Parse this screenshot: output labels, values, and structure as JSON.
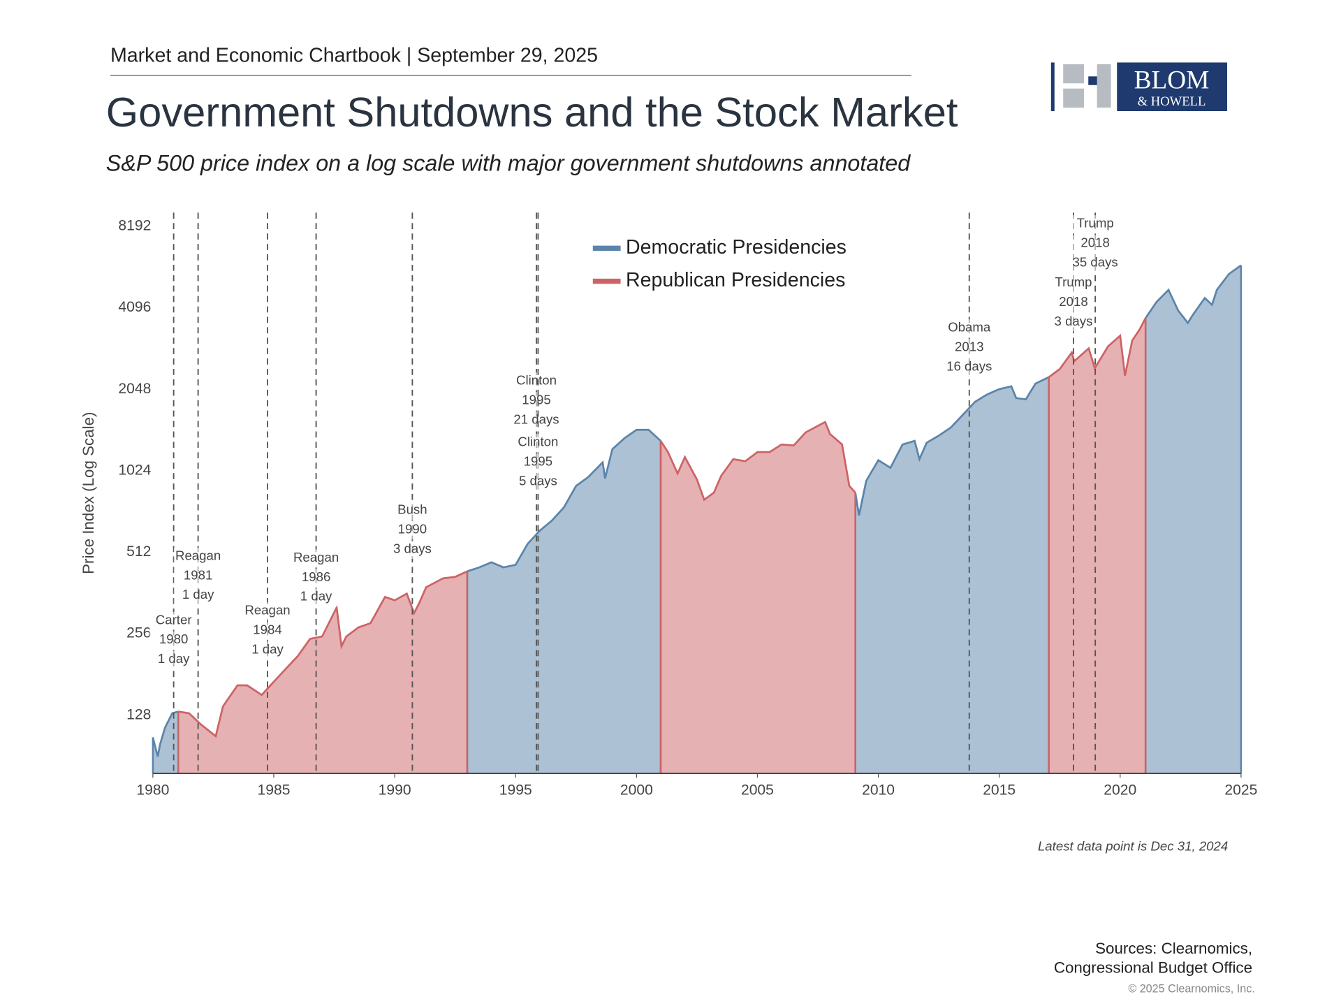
{
  "header": "Market and Economic Chartbook | September 29, 2025",
  "logo": {
    "name": "BLOM",
    "sub": "& HOWELL"
  },
  "chart_data": {
    "type": "line",
    "title": "Government Shutdowns and the Stock Market",
    "subtitle": "S&P 500 price index on a log scale with major government shutdowns annotated",
    "y_label": "Price Index (Log Scale)",
    "log_scale": true,
    "legend": "upper center",
    "area": true,
    "xlim": [
      1980,
      2025
    ],
    "xticks": [
      1980,
      1985,
      1990,
      1995,
      2000,
      2005,
      2010,
      2015,
      2020,
      2025
    ],
    "ylim": [
      78,
      9200
    ],
    "yticks": [
      128,
      256,
      512,
      1024,
      2048,
      4096,
      8192
    ],
    "series": [
      {
        "name": "Democratic Presidencies",
        "color": "#5b84aa",
        "x": [
          1980.0,
          1980.2,
          1980.3,
          1980.5,
          1980.8,
          1981.05,
          null,
          1993.0,
          1993.5,
          1994.0,
          1994.5,
          1995.0,
          1995.5,
          1996.0,
          1996.5,
          1997.0,
          1997.5,
          1998.0,
          1998.6,
          1998.7,
          1999.0,
          1999.5,
          2000.0,
          2000.5,
          2001.0,
          null,
          2009.05,
          2009.2,
          2009.5,
          2010.0,
          2010.5,
          2011.0,
          2011.5,
          2011.7,
          2012.0,
          2012.5,
          2013.0,
          2013.5,
          2014.0,
          2014.5,
          2015.0,
          2015.5,
          2015.7,
          2016.1,
          2016.5,
          2017.05,
          null,
          2021.05,
          2021.5,
          2022.0,
          2022.4,
          2022.8,
          2023.0,
          2023.5,
          2023.8,
          2024.0,
          2024.5,
          2025.0
        ],
        "values": [
          106,
          90,
          100,
          115,
          130,
          132,
          null,
          435,
          450,
          470,
          450,
          460,
          550,
          615,
          670,
          750,
          900,
          970,
          1100,
          960,
          1230,
          1350,
          1450,
          1450,
          1320,
          null,
          850,
          700,
          940,
          1120,
          1050,
          1280,
          1320,
          1130,
          1300,
          1380,
          1480,
          1650,
          1840,
          1960,
          2050,
          2100,
          1900,
          1880,
          2150,
          2270,
          null,
          3750,
          4300,
          4770,
          4000,
          3600,
          3850,
          4450,
          4200,
          4770,
          5460,
          5880
        ]
      },
      {
        "name": "Republican Presidencies",
        "color": "#cd6366",
        "x": [
          1981.05,
          1981.5,
          1982.0,
          1982.6,
          1982.9,
          1983.5,
          1983.9,
          1984.5,
          1985.0,
          1985.5,
          1986.0,
          1986.5,
          1987.0,
          1987.6,
          1987.8,
          1988.0,
          1988.5,
          1989.0,
          1989.6,
          1990.0,
          1990.5,
          1990.8,
          1991.0,
          1991.3,
          1992.0,
          1992.5,
          1993.0,
          null,
          2001.0,
          2001.3,
          2001.7,
          2002.0,
          2002.5,
          2002.8,
          2003.2,
          2003.5,
          2004.0,
          2004.5,
          2005.0,
          2005.5,
          2006.0,
          2006.5,
          2007.0,
          2007.8,
          2008.0,
          2008.5,
          2008.8,
          2009.05,
          null,
          2017.05,
          2017.5,
          2018.0,
          2018.1,
          2018.7,
          2018.95,
          2019.5,
          2020.0,
          2020.2,
          2020.5,
          2020.8,
          2021.05
        ],
        "values": [
          132,
          130,
          118,
          107,
          138,
          165,
          165,
          152,
          170,
          190,
          212,
          245,
          250,
          320,
          230,
          250,
          270,
          280,
          350,
          340,
          360,
          305,
          330,
          380,
          410,
          415,
          435,
          null,
          1320,
          1200,
          1000,
          1150,
          950,
          800,
          850,
          980,
          1130,
          1110,
          1200,
          1200,
          1280,
          1270,
          1420,
          1550,
          1400,
          1280,
          900,
          850,
          null,
          2270,
          2430,
          2800,
          2600,
          2900,
          2450,
          2950,
          3230,
          2300,
          3100,
          3400,
          3750
        ]
      }
    ],
    "annotations": [
      {
        "x": 1980.86,
        "label": [
          "Carter",
          "1980",
          "1 day"
        ]
      },
      {
        "x": 1981.87,
        "label": [
          "Reagan",
          "1981",
          "1 day"
        ]
      },
      {
        "x": 1984.74,
        "label": [
          "Reagan",
          "1984",
          "1 day"
        ]
      },
      {
        "x": 1986.75,
        "label": [
          "Reagan",
          "1986",
          "1 day"
        ]
      },
      {
        "x": 1990.73,
        "label": [
          "Bush",
          "1990",
          "3 days"
        ]
      },
      {
        "x": 1995.86,
        "label": [
          "Clinton",
          "1995",
          "21 days"
        ]
      },
      {
        "x": 1995.93,
        "label": [
          "Clinton",
          "1995",
          "5 days"
        ]
      },
      {
        "x": 2013.76,
        "label": [
          "Obama",
          "2013",
          "16 days"
        ]
      },
      {
        "x": 2018.07,
        "label": [
          "Trump",
          "2018",
          "3 days"
        ]
      },
      {
        "x": 2018.97,
        "label": [
          "Trump",
          "2018",
          "35 days"
        ]
      }
    ],
    "note": "Latest data point is Dec 31, 2024"
  },
  "sources": [
    "Sources: Clearnomics,",
    "Congressional Budget Office"
  ],
  "copyright": "© 2025 Clearnomics, Inc."
}
